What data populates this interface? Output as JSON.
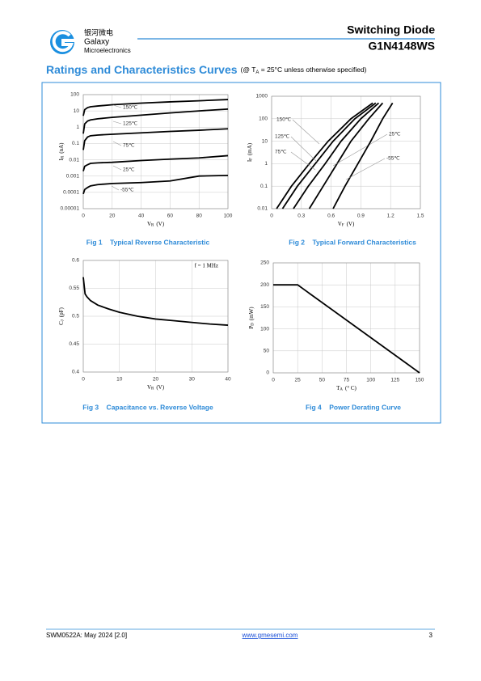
{
  "header": {
    "logo_cn": "银河微电",
    "logo_name": "Galaxy",
    "logo_sub": "Microelectronics",
    "product_type": "Switching Diode",
    "part_number": "G1N4148WS"
  },
  "section": {
    "title": "Ratings and Characteristics Curves",
    "condition_pre": "(@ T",
    "condition_sub": "A",
    "condition_post": " = 25°C unless otherwise specified)"
  },
  "chart_data": [
    {
      "type": "line",
      "caption": "Fig 1    Typical Reverse Characteristic",
      "xlabel": {
        "main": "V",
        "sub": "R",
        "unit": "(V)"
      },
      "ylabel": {
        "main": "I",
        "sub": "R",
        "unit": "(nA)"
      },
      "xlim": [
        0,
        100
      ],
      "xticks": [
        0,
        20,
        40,
        60,
        80,
        100
      ],
      "ylim": [
        1e-05,
        100
      ],
      "yticks": [
        1e-05,
        0.0001,
        0.001,
        0.01,
        0.1,
        1,
        10,
        100
      ],
      "ylog": true,
      "grid": true,
      "x": [
        0,
        1,
        3,
        5,
        10,
        20,
        40,
        60,
        80,
        100
      ],
      "series": [
        {
          "name": "150℃",
          "color": "#000000",
          "values": [
            5,
            12,
            16,
            18,
            20,
            24,
            30,
            36,
            42,
            50
          ]
        },
        {
          "name": "125℃",
          "color": "#000000",
          "values": [
            0.4,
            1.6,
            2.4,
            2.8,
            3.3,
            4,
            5.5,
            7.5,
            10,
            13
          ]
        },
        {
          "name": "75℃",
          "color": "#000000",
          "values": [
            0.04,
            0.15,
            0.25,
            0.3,
            0.33,
            0.37,
            0.45,
            0.55,
            0.65,
            0.8
          ]
        },
        {
          "name": "25℃",
          "color": "#000000",
          "values": [
            0.002,
            0.004,
            0.005,
            0.006,
            0.0065,
            0.007,
            0.009,
            0.011,
            0.013,
            0.018
          ]
        },
        {
          "name": "-55℃",
          "color": "#000000",
          "values": [
            8e-05,
            0.00015,
            0.0002,
            0.00025,
            0.0003,
            0.00035,
            0.0004,
            0.0005,
            0.001,
            0.0011
          ]
        }
      ]
    },
    {
      "type": "line",
      "caption": "Fig 2    Typical Forward Characteristics",
      "xlabel": {
        "main": "V",
        "sub": "F",
        "unit": "(V)"
      },
      "ylabel": {
        "main": "I",
        "sub": "F",
        "unit": "(mA)"
      },
      "xlim": [
        0,
        1.5
      ],
      "xticks": [
        0,
        0.3,
        0.6,
        0.9,
        1.2,
        1.5
      ],
      "ylim": [
        0.01,
        1000
      ],
      "yticks": [
        0.01,
        0.1,
        1,
        10,
        100,
        1000
      ],
      "ylog": true,
      "grid": true,
      "series": [
        {
          "name": "150℃",
          "color": "#000000",
          "x": [
            0.05,
            0.2,
            0.38,
            0.57,
            0.8,
            1.02
          ],
          "values": [
            0.01,
            0.1,
            1,
            10,
            100,
            500
          ]
        },
        {
          "name": "125℃",
          "color": "#000000",
          "x": [
            0.11,
            0.26,
            0.44,
            0.62,
            0.84,
            1.05
          ],
          "values": [
            0.01,
            0.1,
            1,
            10,
            100,
            500
          ]
        },
        {
          "name": "75℃",
          "color": "#000000",
          "x": [
            0.22,
            0.37,
            0.54,
            0.7,
            0.9,
            1.08
          ],
          "values": [
            0.01,
            0.1,
            1,
            10,
            100,
            500
          ]
        },
        {
          "name": "25℃",
          "color": "#000000",
          "x": [
            0.38,
            0.52,
            0.66,
            0.8,
            0.98,
            1.12
          ],
          "values": [
            0.01,
            0.1,
            1,
            10,
            100,
            500
          ]
        },
        {
          "name": "-55℃",
          "color": "#000000",
          "x": [
            0.62,
            0.74,
            0.87,
            1.0,
            1.12,
            1.22
          ],
          "values": [
            0.01,
            0.1,
            1,
            10,
            100,
            500
          ]
        }
      ]
    },
    {
      "type": "line",
      "caption": "Fig 3    Capacitance vs. Reverse Voltage",
      "xlabel": {
        "main": "V",
        "sub": "R",
        "unit": "(V)"
      },
      "ylabel": {
        "main": "C",
        "sub": "J",
        "unit": "(pF)"
      },
      "annotation": "f = 1 MHz",
      "xlim": [
        0,
        40
      ],
      "xticks": [
        0,
        10,
        20,
        30,
        40
      ],
      "ylim": [
        0.4,
        0.6
      ],
      "yticks": [
        0.4,
        0.45,
        0.5,
        0.55,
        0.6
      ],
      "grid": true,
      "x": [
        0,
        0.5,
        1,
        2,
        4,
        7,
        10,
        15,
        20,
        25,
        30,
        35,
        40
      ],
      "series": [
        {
          "color": "#000000",
          "values": [
            0.57,
            0.54,
            0.535,
            0.528,
            0.52,
            0.513,
            0.507,
            0.5,
            0.495,
            0.492,
            0.489,
            0.486,
            0.484
          ]
        }
      ]
    },
    {
      "type": "line",
      "caption": "Fig 4    Power Derating Curve",
      "xlabel": {
        "main": "T",
        "sub": "A",
        "unit": "(° C)"
      },
      "ylabel": {
        "main": "P",
        "sub": "D",
        "unit": "(mW)"
      },
      "xlim": [
        0,
        150
      ],
      "xticks": [
        0,
        25,
        50,
        75,
        100,
        125,
        150
      ],
      "ylim": [
        0,
        250
      ],
      "yticks": [
        0,
        50,
        100,
        150,
        200,
        250
      ],
      "grid": true,
      "x": [
        0,
        25,
        150
      ],
      "series": [
        {
          "color": "#000000",
          "values": [
            200,
            200,
            0
          ]
        }
      ]
    }
  ],
  "footer": {
    "doc": "SWM0522A: May 2024 [2.0]",
    "url": "www.gmesemi.com",
    "page": "3"
  }
}
